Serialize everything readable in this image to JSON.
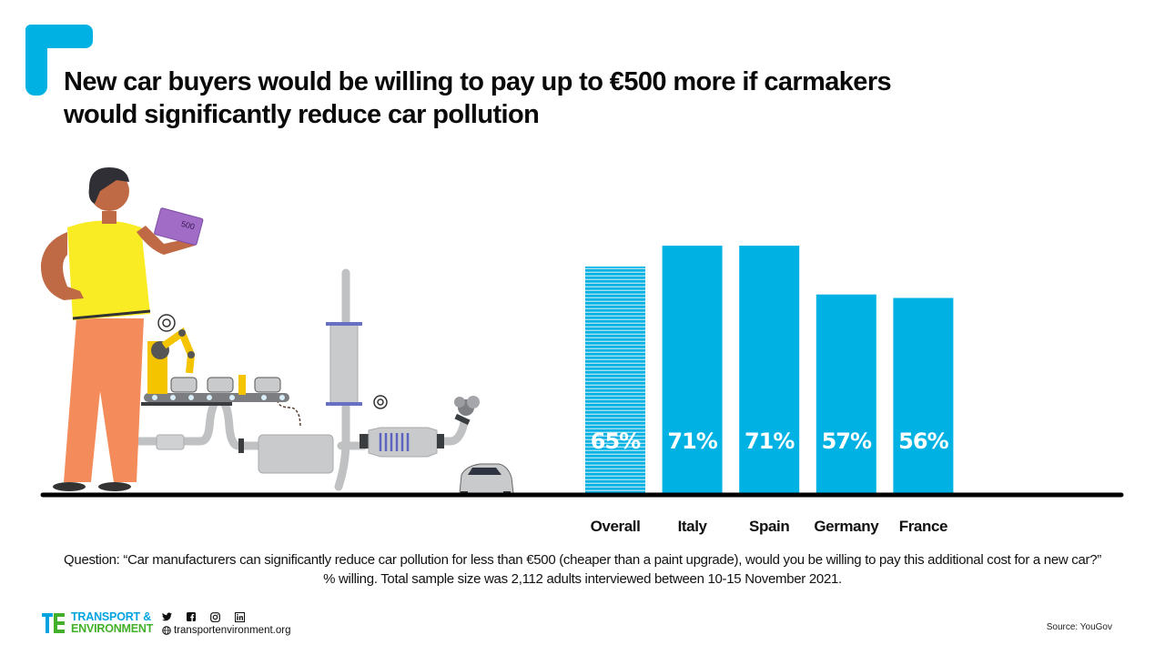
{
  "header": {
    "title_line1": "New car buyers would be willing to pay up to €500 more if carmakers",
    "title_line2": "would significantly reduce car pollution"
  },
  "colors": {
    "accent": "#00b2e3",
    "bar": "#00b2e3",
    "overall_stripe": "#a8dff3",
    "axis": "#000000",
    "logo_blue": "#00a3e0",
    "logo_green": "#43b02a"
  },
  "chart_data": {
    "type": "bar",
    "title": "New car buyers would be willing to pay up to €500 more if carmakers would significantly reduce car pollution",
    "xlabel": "",
    "ylabel": "% willing",
    "categories": [
      "Overall",
      "Italy",
      "Spain",
      "Germany",
      "France"
    ],
    "values": [
      65,
      71,
      71,
      57,
      56
    ],
    "value_labels": [
      "65%",
      "71%",
      "71%",
      "57%",
      "56%"
    ],
    "highlight": [
      "striped",
      "solid",
      "solid",
      "solid",
      "solid"
    ],
    "ylim": [
      0,
      71
    ],
    "grid": false,
    "legend": "none",
    "unit": "%"
  },
  "footnote": {
    "line1": "Question: “Car manufacturers can significantly reduce car pollution for less than €500 (cheaper than a paint upgrade), would you be willing to pay this additional cost for a new car?”",
    "line2": "% willing. Total sample size was 2,112 adults interviewed between 10-15 November 2021."
  },
  "footer": {
    "logo_line1": "TRANSPORT &",
    "logo_line2": "ENVIRONMENT",
    "social_icons": [
      "twitter-icon",
      "facebook-icon",
      "instagram-icon",
      "linkedin-icon"
    ],
    "website": "transportenvironment.org",
    "source": "Source: YouGov"
  },
  "illustration": {
    "banknote_label": "500"
  }
}
